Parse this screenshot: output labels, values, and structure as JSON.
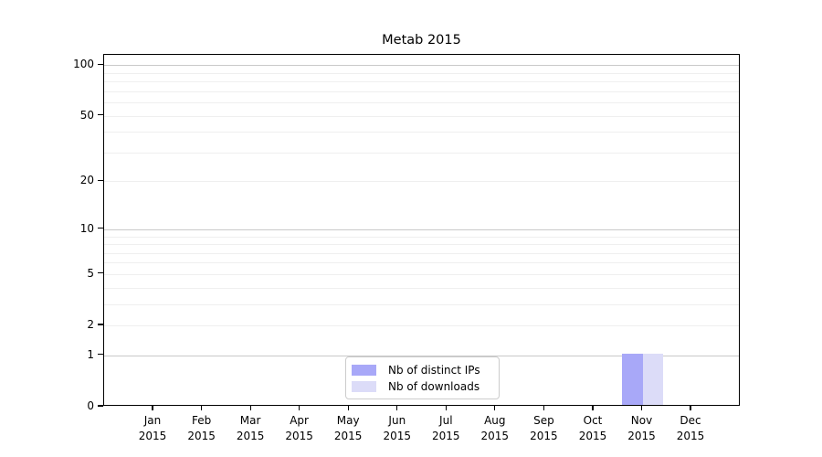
{
  "title": "Metab 2015",
  "chart_data": {
    "type": "bar",
    "title": "Metab 2015",
    "xlabel": "",
    "ylabel": "",
    "yscale": "log1p",
    "ylim": [
      0,
      115
    ],
    "grid": "both",
    "legend_position": "lower center inside",
    "yticks": [
      0,
      1,
      2,
      5,
      10,
      20,
      50,
      100
    ],
    "ytick_major": [
      1,
      10,
      100
    ],
    "ytick_minor_grid": [
      2,
      3,
      4,
      5,
      6,
      7,
      8,
      9,
      20,
      30,
      40,
      50,
      60,
      70,
      80,
      90
    ],
    "categories": [
      "Jan 2015",
      "Feb 2015",
      "Mar 2015",
      "Apr 2015",
      "May 2015",
      "Jun 2015",
      "Jul 2015",
      "Aug 2015",
      "Sep 2015",
      "Oct 2015",
      "Nov 2015",
      "Dec 2015"
    ],
    "series": [
      {
        "name": "Nb of distinct IPs",
        "color": "#a8a8f8",
        "values": [
          0,
          0,
          0,
          0,
          0,
          0,
          0,
          0,
          0,
          0,
          1,
          0
        ]
      },
      {
        "name": "Nb of downloads",
        "color": "#dcdcf8",
        "values": [
          0,
          0,
          0,
          0,
          0,
          0,
          0,
          0,
          0,
          0,
          1,
          0
        ]
      }
    ]
  },
  "legend": {
    "items": [
      {
        "label": "Nb of distinct IPs",
        "color": "#a8a8f8"
      },
      {
        "label": "Nb of downloads",
        "color": "#dcdcf8"
      }
    ]
  }
}
